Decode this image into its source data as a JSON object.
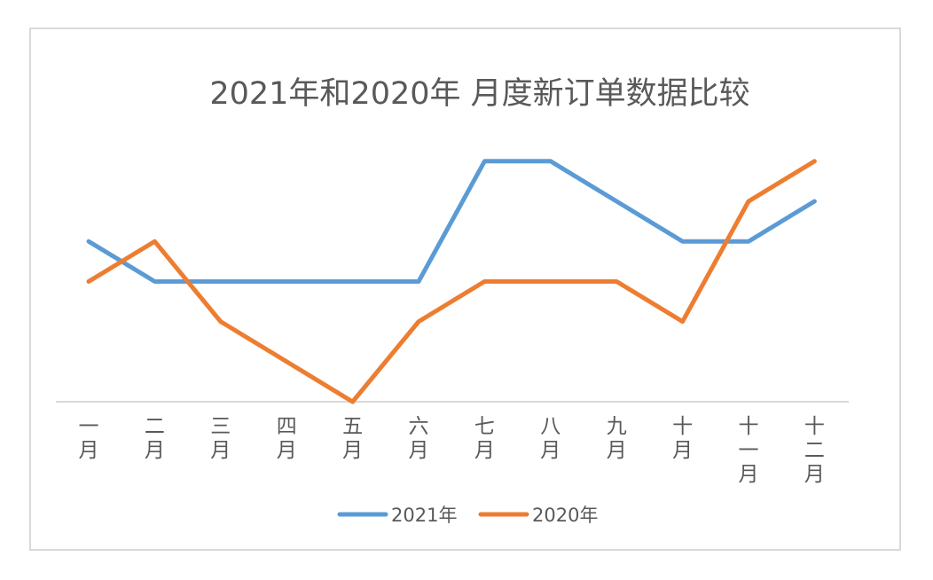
{
  "chart_data": {
    "type": "line",
    "title": "2021年和2020年 月度新订单数据比较",
    "categories": [
      "一月",
      "二月",
      "三月",
      "四月",
      "五月",
      "六月",
      "七月",
      "八月",
      "九月",
      "十月",
      "十一月",
      "十二月"
    ],
    "series": [
      {
        "name": "2021年",
        "color": "#5b9bd5",
        "values": [
          4,
          3,
          3,
          3,
          3,
          3,
          6,
          6,
          5,
          4,
          4,
          5
        ]
      },
      {
        "name": "2020年",
        "color": "#ed7d31",
        "values": [
          3,
          4,
          2,
          1,
          0,
          2,
          3,
          3,
          3,
          2,
          5,
          6
        ]
      }
    ],
    "ylim": [
      0,
      6
    ],
    "grid": false,
    "y_axis_labels": false,
    "legend": "bottom"
  }
}
